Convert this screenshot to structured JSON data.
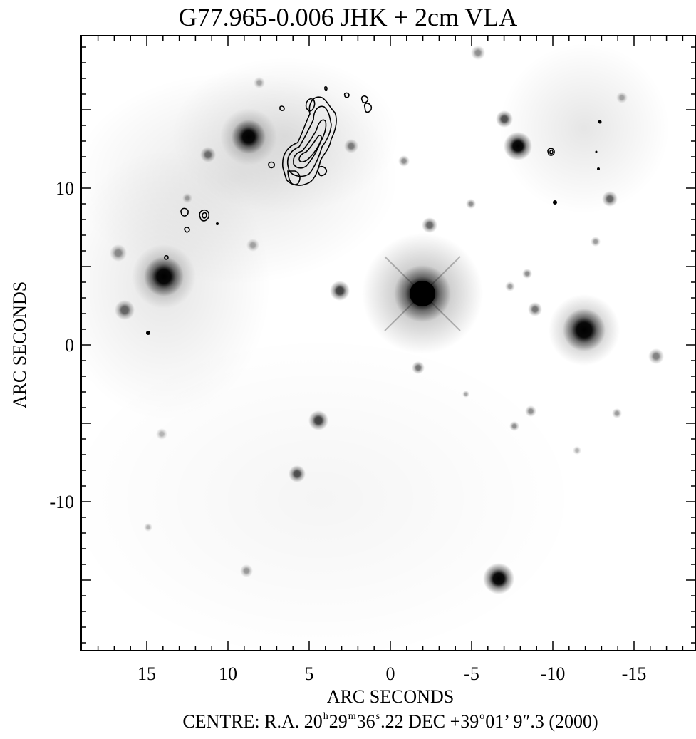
{
  "figure": {
    "title": "G77.965-0.006 JHK + 2cm VLA",
    "x_axis_label": "ARC SECONDS",
    "y_axis_label": "ARC SECONDS",
    "x_ticks": [
      "15",
      "10",
      "5",
      "0",
      "-5",
      "-10",
      "-15"
    ],
    "y_ticks": [
      "10",
      "0",
      "-10"
    ],
    "caption": {
      "prefix": "CENTRE:  R.A. 20",
      "ra_h_sup": "h",
      "ra_m": "29",
      "ra_m_sup": "m",
      "ra_s": "36",
      "ra_s_sup": "s",
      "ra_frac": ".22  DEC  +39",
      "dec_deg_sup": "o",
      "dec_rest": "01’ 9″.3  (2000)"
    },
    "colors": {
      "background": "#ffffff",
      "axes": "#000000",
      "nebula": "#9a9a9a"
    }
  }
}
